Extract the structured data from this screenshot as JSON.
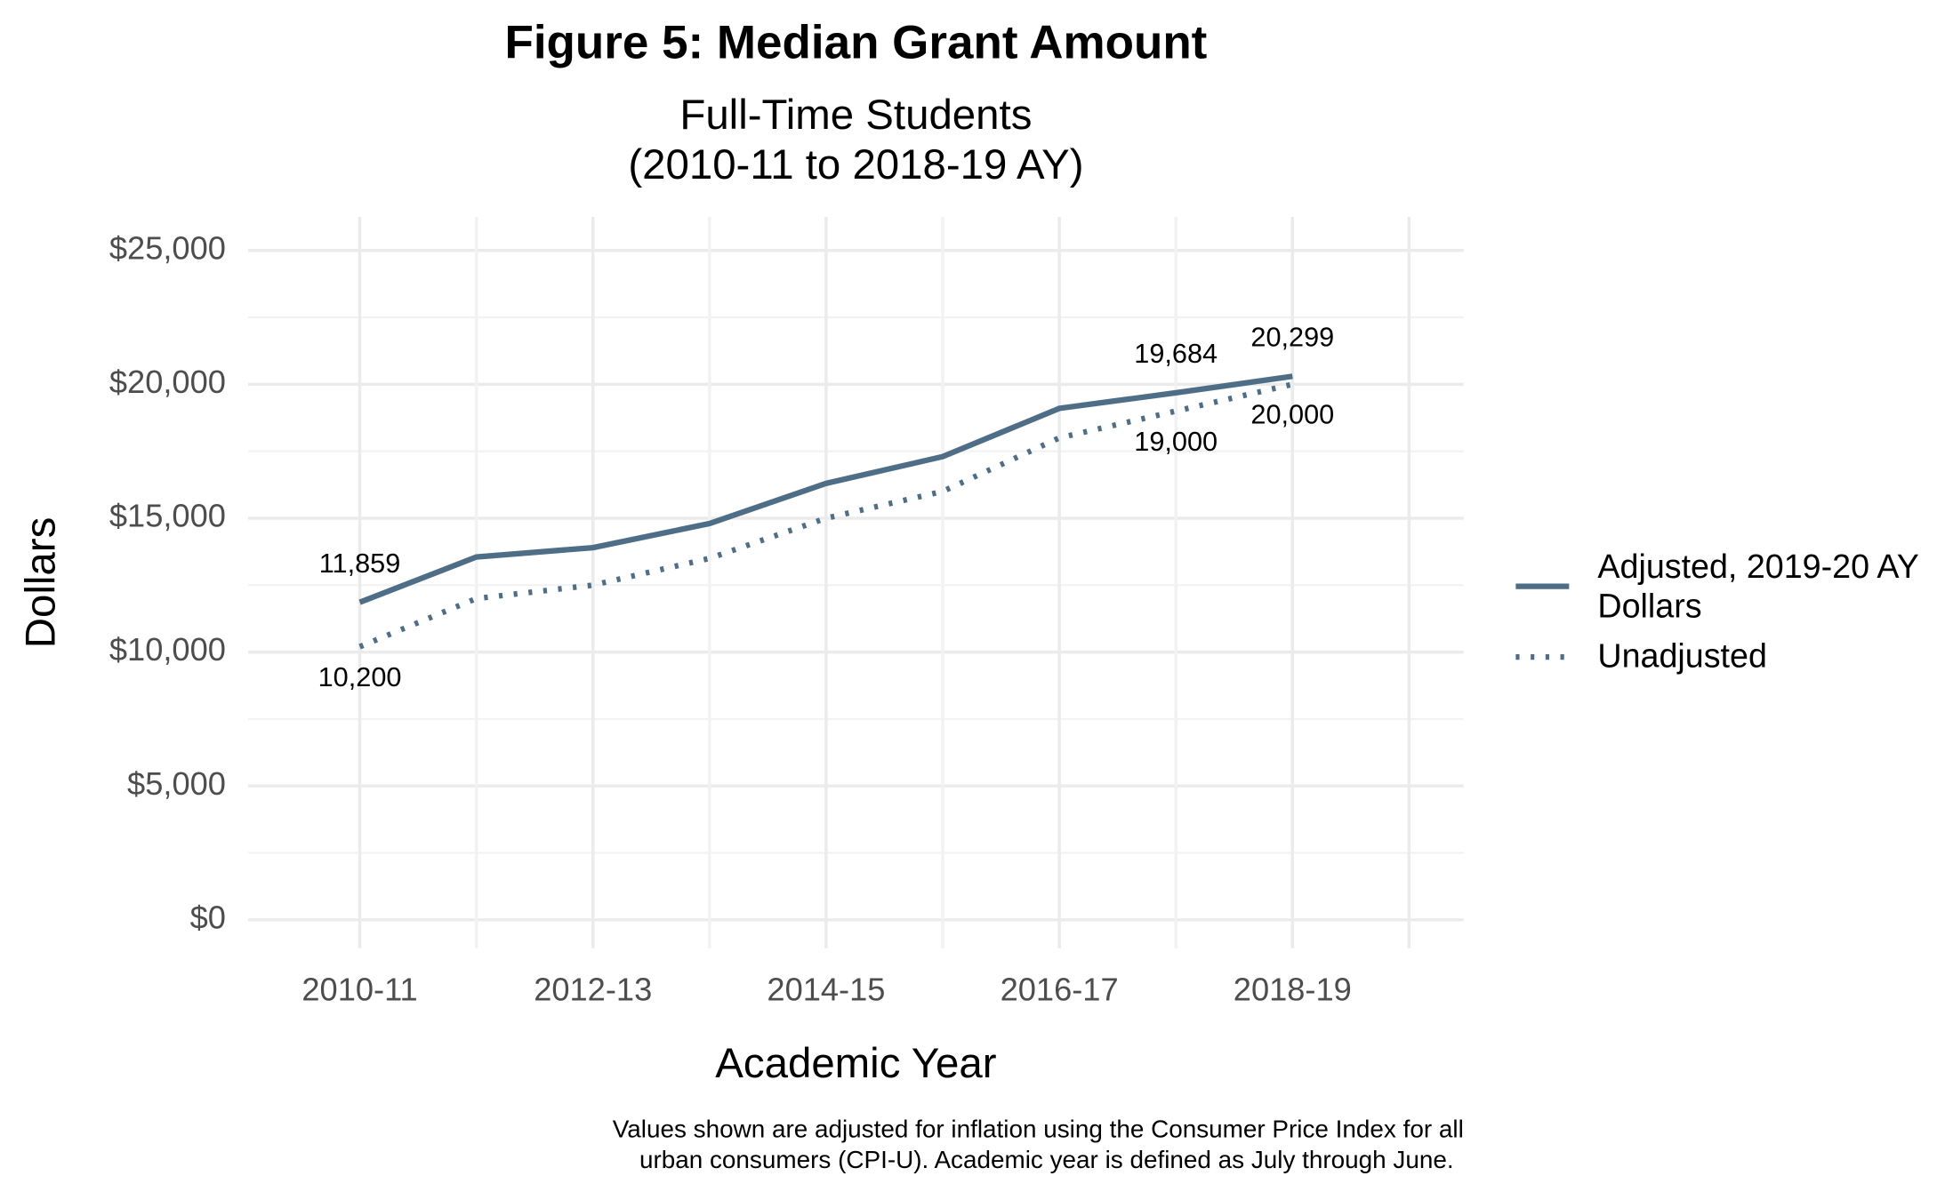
{
  "chart_data": {
    "type": "line",
    "title": "Figure 5: Median Grant Amount",
    "subtitle": [
      "Full-Time Students",
      "(2010-11 to 2018-19 AY)"
    ],
    "x_label": "Academic Year",
    "y_label": "Dollars",
    "caption": [
      "Values shown are adjusted for inflation using the Consumer Price Index for all",
      "urban consumers (CPI-U). Academic year is defined as July through June."
    ],
    "categories": [
      "2010-11",
      null,
      "2012-13",
      null,
      "2014-15",
      null,
      "2016-17",
      null,
      "2018-19"
    ],
    "series": [
      {
        "name": "Adjusted, 2019-20 AY Dollars",
        "color": "#4e6e87",
        "style": "solid",
        "values": [
          11859,
          13550,
          13900,
          14800,
          16300,
          17300,
          19100,
          19684,
          20299
        ],
        "value_labels": [
          "11,859",
          null,
          null,
          null,
          null,
          null,
          null,
          "19,684",
          "20,299"
        ]
      },
      {
        "name": "Unadjusted",
        "color": "#4e6e87",
        "style": "dotted",
        "values": [
          10200,
          12000,
          12500,
          13500,
          15000,
          16000,
          18000,
          19000,
          20000
        ],
        "value_labels": [
          "10,200",
          null,
          null,
          null,
          null,
          null,
          null,
          "19,000",
          "20,000"
        ]
      }
    ],
    "ylim": [
      0,
      25000
    ],
    "yticks": [
      {
        "value": 0,
        "label": "$0"
      },
      {
        "value": 5000,
        "label": "$5,000"
      },
      {
        "value": 10000,
        "label": "$10,000"
      },
      {
        "value": 15000,
        "label": "$15,000"
      },
      {
        "value": 20000,
        "label": "$20,000"
      },
      {
        "value": 25000,
        "label": "$25,000"
      }
    ],
    "grid": true,
    "legend": "right"
  }
}
